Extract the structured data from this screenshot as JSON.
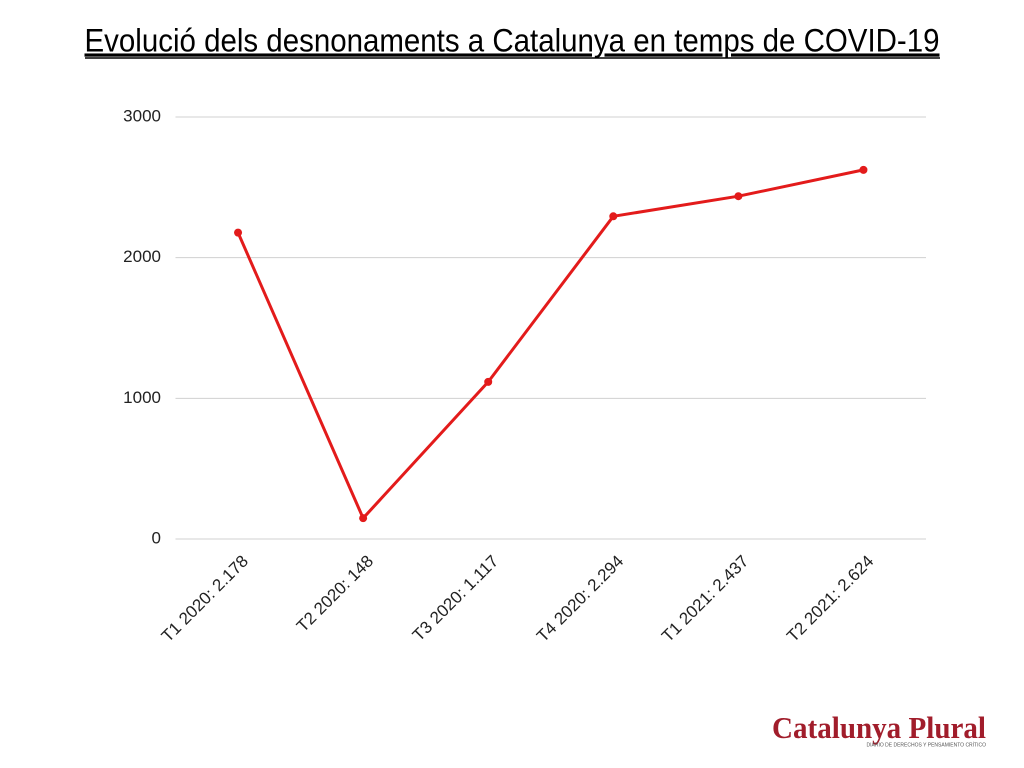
{
  "chart_data": {
    "type": "line",
    "title": "Evolució dels desnonaments a Catalunya en temps de COVID-19",
    "categories": [
      "T1 2020: 2.178",
      "T2 2020: 148",
      "T3 2020: 1.117",
      "T4 2020: 2.294",
      "T1 2021: 2.437",
      "T2 2021: 2.624"
    ],
    "values": [
      2178,
      148,
      1117,
      2294,
      2437,
      2624
    ],
    "color": "#e31b1b",
    "ylim": [
      0,
      3000
    ],
    "yticks": [
      0,
      1000,
      2000,
      3000
    ],
    "grid": true
  },
  "branding": {
    "name": "Catalunya Plural",
    "tagline": "DIARIO DE DERECHOS Y PENSAMIENTO CRÍTICO"
  }
}
